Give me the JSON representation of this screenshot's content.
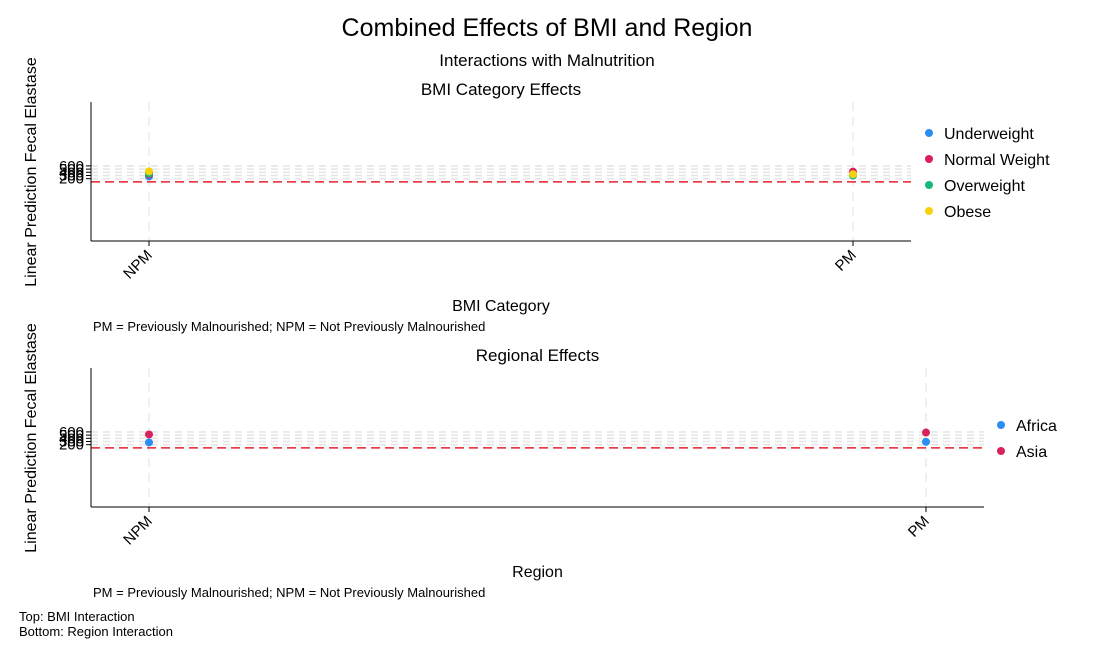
{
  "title": "Combined Effects of BMI and Region",
  "subtitle": "Interactions with Malnutrition",
  "caption": [
    "Top: BMI Interaction",
    "Bottom: Region Interaction"
  ],
  "colors": {
    "reference_line": "#e8212b",
    "grid": "#e6e6e6",
    "axis": "#000000"
  },
  "chart_data": [
    {
      "type": "scatter",
      "title": "BMI Category Effects",
      "xlabel": "BMI Category",
      "ylabel": "Linear Prediction Fecal Elastase",
      "note": "PM = Previously Malnourished; NPM = Not Previously Malnourished",
      "categories": [
        "NPM",
        "PM"
      ],
      "yticks": [
        200,
        300,
        400,
        500,
        600
      ],
      "ytick_labels": [
        "200",
        "300",
        "400",
        "500",
        "600"
      ],
      "ylim": [
        -1750,
        2600
      ],
      "reference_line": {
        "y": 100,
        "style": "dashed",
        "color": "#e8212b"
      },
      "grid": true,
      "legend_position": "right",
      "series": [
        {
          "name": "Underweight",
          "color": "#2b8cf2",
          "values": [
            270,
            330
          ]
        },
        {
          "name": "Normal Weight",
          "color": "#d9215a",
          "values": [
            330,
            420
          ]
        },
        {
          "name": "Overweight",
          "color": "#17b978",
          "values": [
            360,
            300
          ]
        },
        {
          "name": "Obese",
          "color": "#f6d20c",
          "values": [
            430,
            340
          ]
        }
      ]
    },
    {
      "type": "scatter",
      "title": "Regional Effects",
      "xlabel": "Region",
      "ylabel": "Linear Prediction Fecal Elastase",
      "note": "PM = Previously Malnourished; NPM = Not Previously Malnourished",
      "categories": [
        "NPM",
        "PM"
      ],
      "yticks": [
        200,
        300,
        400,
        500,
        600
      ],
      "ytick_labels": [
        "200",
        "300",
        "400",
        "500",
        "600"
      ],
      "ylim": [
        -1750,
        2600
      ],
      "reference_line": {
        "y": 100,
        "style": "dashed",
        "color": "#e8212b"
      },
      "grid": true,
      "legend_position": "right",
      "series": [
        {
          "name": "Africa",
          "color": "#2b8cf2",
          "values": [
            270,
            290
          ]
        },
        {
          "name": "Asia",
          "color": "#d9215a",
          "values": [
            520,
            580
          ]
        }
      ]
    }
  ]
}
